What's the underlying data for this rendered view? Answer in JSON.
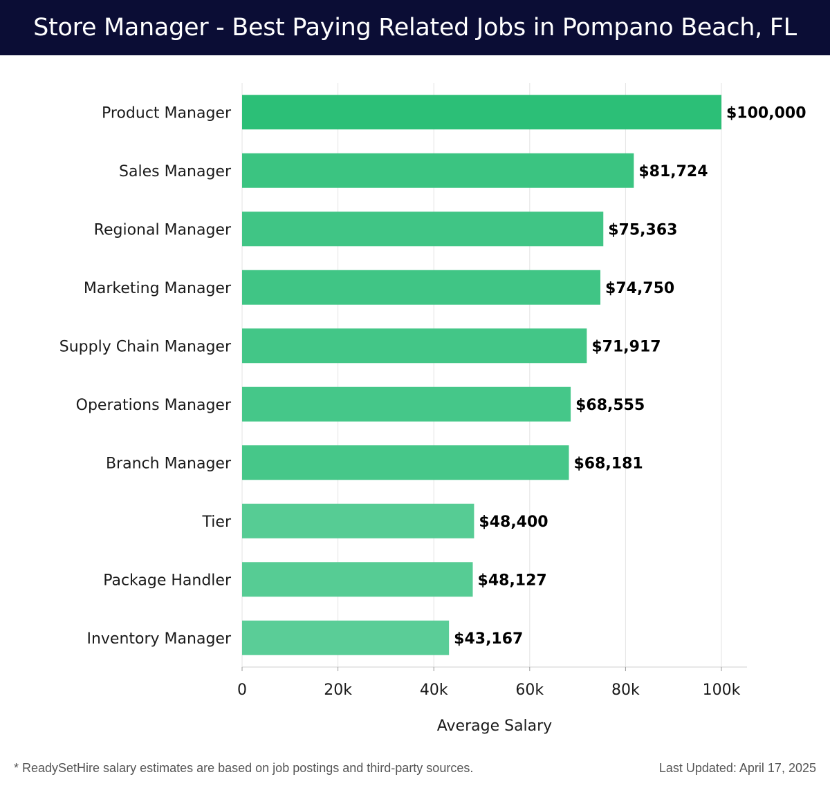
{
  "header": {
    "title": "Store Manager - Best Paying Related Jobs in Pompano Beach, FL"
  },
  "footer": {
    "note": "* ReadySetHire salary estimates are based on job postings and third-party sources.",
    "updated": "Last Updated: April 17, 2025"
  },
  "chart_data": {
    "type": "bar",
    "orientation": "horizontal",
    "title": "Store Manager - Best Paying Related Jobs in Pompano Beach, FL",
    "xlabel": "Average Salary",
    "ylabel": "",
    "categories": [
      "Product Manager",
      "Sales Manager",
      "Regional Manager",
      "Marketing Manager",
      "Supply Chain Manager",
      "Operations Manager",
      "Branch Manager",
      "Tier",
      "Package Handler",
      "Inventory Manager"
    ],
    "values": [
      100000,
      81724,
      75363,
      74750,
      71917,
      68555,
      68181,
      48400,
      48127,
      43167
    ],
    "value_labels": [
      "$100,000",
      "$81,724",
      "$75,363",
      "$74,750",
      "$71,917",
      "$68,555",
      "$68,181",
      "$48,400",
      "$48,127",
      "$43,167"
    ],
    "xlim": [
      0,
      105000
    ],
    "ticks": [
      0,
      20000,
      40000,
      60000,
      80000,
      100000
    ],
    "tick_labels": [
      "0",
      "20k",
      "40k",
      "60k",
      "80k",
      "100k"
    ],
    "grid": true,
    "colors": {
      "bar_high": "#2cbf77",
      "bar_low": "#5acd97",
      "grid": "#e3e3e3",
      "axis": "#cfcfcf"
    }
  }
}
